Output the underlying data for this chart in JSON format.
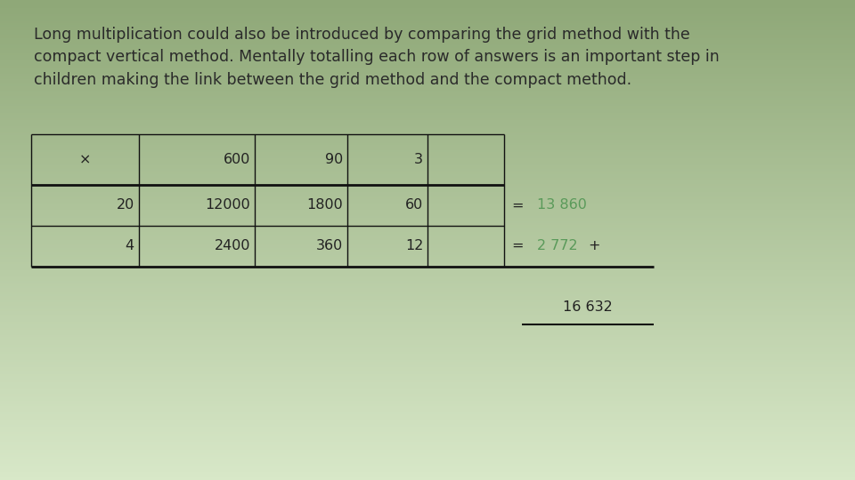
{
  "background_top": "#8fa878",
  "background_bottom": "#d8e8c8",
  "text_paragraph": "Long multiplication could also be introduced by comparing the grid method with the\ncompact vertical method. Mentally totalling each row of answers is an important step in\nchildren making the link between the grid method and the compact method.",
  "text_color": "#2a2a2a",
  "text_fontsize": 12.5,
  "header_row": [
    "×",
    "600",
    "90",
    "3"
  ],
  "row1": [
    "20",
    "12000",
    "1800",
    "60"
  ],
  "row2": [
    "4",
    "2400",
    "360",
    "12"
  ],
  "eq_color": "#5a9a5a",
  "row1_eq": "=",
  "row1_val": "13 860",
  "row2_eq": "=",
  "row2_val": "2 772",
  "row2_plus": "+",
  "total_val": "16 632",
  "cell_text_color": "#222222",
  "cell_fontsize": 11.5,
  "line_color": "#111111"
}
